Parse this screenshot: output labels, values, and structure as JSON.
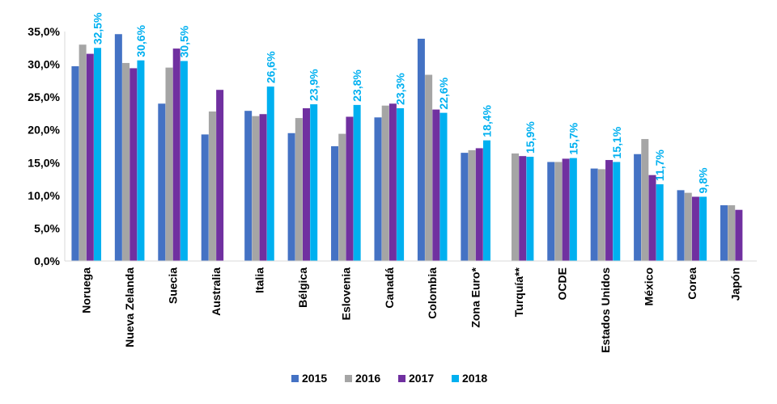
{
  "chart_data": {
    "type": "bar",
    "categories": [
      "Noruega",
      "Nueva Zelanda",
      "Suecia",
      "Australia",
      "Italia",
      "Bélgica",
      "Eslovenia",
      "Canadá",
      "Colombia",
      "Zona Euro*",
      "Turquía**",
      "OCDE",
      "Estados Unidos",
      "México",
      "Corea",
      "Japón"
    ],
    "series": [
      {
        "name": "2015",
        "color": "#4472C4",
        "values": [
          29.7,
          34.6,
          24.0,
          19.3,
          22.9,
          19.5,
          17.5,
          21.9,
          33.9,
          16.5,
          null,
          15.1,
          14.1,
          16.3,
          10.8,
          8.5
        ]
      },
      {
        "name": "2016",
        "color": "#A5A5A5",
        "values": [
          33.0,
          30.2,
          29.5,
          22.8,
          22.1,
          21.8,
          19.4,
          23.7,
          28.4,
          16.9,
          16.4,
          15.1,
          14.0,
          18.6,
          10.4,
          8.5
        ]
      },
      {
        "name": "2017",
        "color": "#7030A0",
        "values": [
          31.6,
          29.4,
          32.4,
          26.1,
          22.4,
          23.3,
          22.0,
          24.0,
          23.1,
          17.2,
          16.0,
          15.6,
          15.4,
          13.1,
          9.8,
          7.8
        ]
      },
      {
        "name": "2018",
        "color": "#00B0F0",
        "values": [
          32.5,
          30.6,
          30.5,
          null,
          26.6,
          23.9,
          23.8,
          23.3,
          22.6,
          18.4,
          15.9,
          15.7,
          15.1,
          11.7,
          9.8,
          null
        ]
      }
    ],
    "data_labels_2018": [
      "32,5%",
      "30,6%",
      "30,5%",
      "",
      "26,6%",
      "23,9%",
      "23,8%",
      "23,3%",
      "22,6%",
      "18,4%",
      "15,9%",
      "15,7%",
      "15,1%",
      "11,7%",
      "9,8%",
      ""
    ],
    "y_ticks": [
      "0,0%",
      "5,0%",
      "10,0%",
      "15,0%",
      "20,0%",
      "25,0%",
      "30,0%",
      "35,0%"
    ],
    "ylim": [
      0,
      35
    ],
    "ytick_step": 5,
    "grid": false,
    "legend_position": "bottom",
    "title": "",
    "xlabel": "",
    "ylabel": ""
  }
}
